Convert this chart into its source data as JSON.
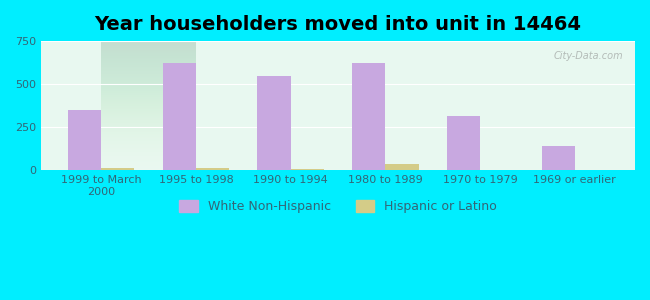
{
  "title": "Year householders moved into unit in 14464",
  "categories": [
    "1999 to March\n2000",
    "1995 to 1998",
    "1990 to 1994",
    "1980 to 1989",
    "1970 to 1979",
    "1969 or earlier"
  ],
  "white_values": [
    350,
    620,
    550,
    620,
    315,
    140
  ],
  "hispanic_values": [
    12,
    15,
    5,
    35,
    0,
    0
  ],
  "bar_color_white": "#c8a8e0",
  "bar_color_hispanic": "#d4cc88",
  "background_outer": "#00eeff",
  "background_inner_top": "#d8f0e8",
  "background_inner_bottom": "#f0faf0",
  "ylim": [
    0,
    750
  ],
  "yticks": [
    0,
    250,
    500,
    750
  ],
  "title_fontsize": 14,
  "tick_fontsize": 8,
  "legend_fontsize": 9,
  "watermark": "City-Data.com",
  "bar_width": 0.35
}
